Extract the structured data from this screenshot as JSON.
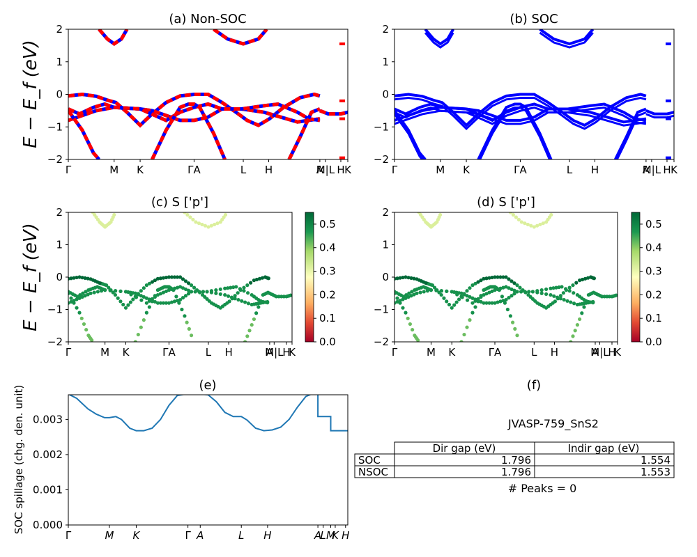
{
  "chart_data": [
    {
      "id": "a",
      "type": "line",
      "title": "(a) Non-SOC",
      "ylabel": "E − E_f (eV)",
      "ylim": [
        -2,
        2
      ],
      "yticks": [
        "2",
        "1",
        "0",
        "−1",
        "−2"
      ],
      "kticks": [
        {
          "k": 0,
          "label": "Γ"
        },
        {
          "k": 0.164,
          "label": "M"
        },
        {
          "k": 0.257,
          "label": "K"
        },
        {
          "k": 0.45,
          "label": "ΓA"
        },
        {
          "k": 0.626,
          "label": "L"
        },
        {
          "k": 0.717,
          "label": "H"
        },
        {
          "k": 0.9,
          "label": "A"
        },
        {
          "k": 0.92,
          "label": "M|L"
        },
        {
          "k": 0.975,
          "label": "H"
        },
        {
          "k": 1.0,
          "label": "K"
        }
      ],
      "series": [
        {
          "style": "dashed-red-blue",
          "values": [
            [
              0,
              -0.05
            ],
            [
              0.05,
              0.0
            ],
            [
              0.1,
              -0.06
            ],
            [
              0.14,
              -0.18
            ],
            [
              0.17,
              -0.25
            ],
            [
              0.21,
              -0.55
            ],
            [
              0.257,
              -0.95
            ],
            [
              0.3,
              -0.6
            ],
            [
              0.35,
              -0.25
            ],
            [
              0.4,
              -0.05
            ],
            [
              0.45,
              0.0
            ],
            [
              0.5,
              0.0
            ],
            [
              0.55,
              -0.25
            ],
            [
              0.6,
              -0.55
            ],
            [
              0.64,
              -0.8
            ],
            [
              0.68,
              -0.95
            ],
            [
              0.72,
              -0.75
            ],
            [
              0.77,
              -0.4
            ],
            [
              0.83,
              -0.1
            ],
            [
              0.88,
              0.0
            ],
            [
              0.9,
              -0.05
            ]
          ]
        },
        {
          "style": "dashed-red-blue",
          "values": [
            [
              0,
              -0.8
            ],
            [
              0.05,
              -0.65
            ],
            [
              0.1,
              -0.5
            ],
            [
              0.164,
              -0.4
            ],
            [
              0.257,
              -0.45
            ],
            [
              0.3,
              -0.5
            ],
            [
              0.35,
              -0.65
            ],
            [
              0.4,
              -0.8
            ],
            [
              0.45,
              -0.8
            ],
            [
              0.5,
              -0.7
            ],
            [
              0.55,
              -0.45
            ],
            [
              0.62,
              -0.45
            ],
            [
              0.7,
              -0.55
            ],
            [
              0.76,
              -0.7
            ],
            [
              0.82,
              -0.85
            ],
            [
              0.86,
              -0.8
            ],
            [
              0.9,
              -0.75
            ]
          ]
        },
        {
          "style": "dashed-red-blue",
          "values": [
            [
              0,
              -0.45
            ],
            [
              0.04,
              -0.6
            ],
            [
              0.09,
              -0.4
            ],
            [
              0.13,
              -0.3
            ],
            [
              0.164,
              -0.4
            ],
            [
              0.257,
              -0.45
            ],
            [
              0.35,
              -0.8
            ],
            [
              0.4,
              -0.55
            ],
            [
              0.45,
              -0.4
            ],
            [
              0.5,
              -0.3
            ],
            [
              0.55,
              -0.45
            ],
            [
              0.62,
              -0.45
            ],
            [
              0.7,
              -0.35
            ],
            [
              0.75,
              -0.3
            ],
            [
              0.82,
              -0.55
            ],
            [
              0.86,
              -0.75
            ],
            [
              0.9,
              -0.8
            ]
          ]
        },
        {
          "style": "dashed-red-blue",
          "values": [
            [
              0,
              -0.5
            ],
            [
              0.05,
              -1.1
            ],
            [
              0.09,
              -1.8
            ],
            [
              0.11,
              -2.0
            ]
          ]
        },
        {
          "style": "dashed-red-blue",
          "values": [
            [
              0.3,
              -2.0
            ],
            [
              0.35,
              -1.1
            ],
            [
              0.4,
              -0.4
            ],
            [
              0.43,
              -0.3
            ],
            [
              0.45,
              -0.3
            ],
            [
              0.47,
              -0.4
            ],
            [
              0.52,
              -1.2
            ],
            [
              0.56,
              -2.0
            ]
          ]
        },
        {
          "style": "dashed-red-blue",
          "values": [
            [
              0.79,
              -2.0
            ],
            [
              0.83,
              -1.3
            ],
            [
              0.87,
              -0.55
            ],
            [
              0.9,
              -0.45
            ]
          ]
        },
        {
          "style": "dashed-red-blue",
          "values": [
            [
              0.11,
              2.0
            ],
            [
              0.14,
              1.7
            ],
            [
              0.164,
              1.55
            ],
            [
              0.19,
              1.7
            ],
            [
              0.21,
              2.0
            ]
          ]
        },
        {
          "style": "dashed-red-blue",
          "values": [
            [
              0.52,
              2.0
            ],
            [
              0.57,
              1.7
            ],
            [
              0.626,
              1.55
            ],
            [
              0.68,
              1.7
            ],
            [
              0.71,
              2.0
            ]
          ]
        },
        {
          "style": "dashed-red-blue",
          "values": [
            [
              0.9,
              -0.5
            ],
            [
              0.93,
              -0.6
            ],
            [
              0.975,
              -0.6
            ],
            [
              1.0,
              -0.55
            ]
          ]
        }
      ]
    },
    {
      "id": "b",
      "type": "line",
      "title": "(b) SOC",
      "ylim": [
        -2,
        2
      ],
      "yticks": [
        "2",
        "1",
        "0",
        "−1",
        "−2"
      ],
      "kticks": [
        {
          "k": 0,
          "label": "Γ"
        },
        {
          "k": 0.164,
          "label": "M"
        },
        {
          "k": 0.257,
          "label": "K"
        },
        {
          "k": 0.45,
          "label": "ΓA"
        },
        {
          "k": 0.626,
          "label": "L"
        },
        {
          "k": 0.717,
          "label": "H"
        },
        {
          "k": 0.9,
          "label": "A"
        },
        {
          "k": 0.92,
          "label": "M|L"
        },
        {
          "k": 0.975,
          "label": "H"
        },
        {
          "k": 1.0,
          "label": "K"
        }
      ],
      "series_color": "#0000ff"
    },
    {
      "id": "c",
      "type": "scatter",
      "title": "(c)  S ['p']",
      "ylabel": "E − E_f (eV)",
      "ylim": [
        -2,
        2
      ],
      "colorbar": {
        "min": 0.0,
        "max": 0.55,
        "ticks": [
          "0.0",
          "0.1",
          "0.2",
          "0.3",
          "0.4",
          "0.5"
        ],
        "colormap": "RdYlGn"
      }
    },
    {
      "id": "d",
      "type": "scatter",
      "title": "(d) S ['p']",
      "ylim": [
        -2,
        2
      ],
      "colorbar": {
        "min": 0.0,
        "max": 0.55,
        "ticks": [
          "0.0",
          "0.1",
          "0.2",
          "0.3",
          "0.4",
          "0.5"
        ],
        "colormap": "RdYlGn"
      }
    },
    {
      "id": "e",
      "type": "line",
      "title": "(e)",
      "ylabel": "SOC spillage (chg. den. unit)",
      "ylim": [
        0,
        0.0037
      ],
      "yticks": [
        "0.000",
        "0.001",
        "0.002",
        "0.003"
      ],
      "kticks": [
        {
          "k": 0,
          "label": "Γ"
        },
        {
          "k": 0.147,
          "label": "M"
        },
        {
          "k": 0.243,
          "label": "K"
        },
        {
          "k": 0.428,
          "label": "Γ"
        },
        {
          "k": 0.472,
          "label": "A"
        },
        {
          "k": 0.619,
          "label": "L"
        },
        {
          "k": 0.713,
          "label": "H"
        },
        {
          "k": 0.893,
          "label": "A"
        },
        {
          "k": 0.912,
          "label": "L"
        },
        {
          "k": 0.939,
          "label": "M"
        },
        {
          "k": 0.955,
          "label": "K"
        },
        {
          "k": 0.992,
          "label": "H"
        }
      ],
      "x": [
        0,
        0.03,
        0.07,
        0.1,
        0.13,
        0.147,
        0.17,
        0.19,
        0.22,
        0.243,
        0.27,
        0.3,
        0.33,
        0.36,
        0.39,
        0.42,
        0.472,
        0.5,
        0.53,
        0.56,
        0.59,
        0.619,
        0.64,
        0.67,
        0.7,
        0.73,
        0.76,
        0.79,
        0.82,
        0.85,
        0.87,
        0.893,
        0.893,
        0.939,
        0.939,
        1.0
      ],
      "values": [
        0.00372,
        0.0036,
        0.0033,
        0.00315,
        0.00305,
        0.00305,
        0.00308,
        0.003,
        0.00275,
        0.00268,
        0.00268,
        0.00275,
        0.003,
        0.0034,
        0.00368,
        0.00372,
        0.00372,
        0.0037,
        0.0035,
        0.0032,
        0.00308,
        0.00308,
        0.00298,
        0.00275,
        0.00268,
        0.0027,
        0.00278,
        0.003,
        0.00335,
        0.00365,
        0.00372,
        0.00372,
        0.00308,
        0.00308,
        0.00268,
        0.00268
      ],
      "color": "#1f77b4"
    }
  ],
  "panel_f": {
    "title": "(f)",
    "material": "JVASP-759_SnS2",
    "table": {
      "headers": [
        "",
        "Dir gap (eV)",
        "Indir gap (eV)"
      ],
      "rows": [
        {
          "label": "SOC",
          "dir": "1.796",
          "indir": "1.554"
        },
        {
          "label": "NSOC",
          "dir": "1.796",
          "indir": "1.553"
        }
      ]
    },
    "peaks": "# Peaks = 0"
  }
}
